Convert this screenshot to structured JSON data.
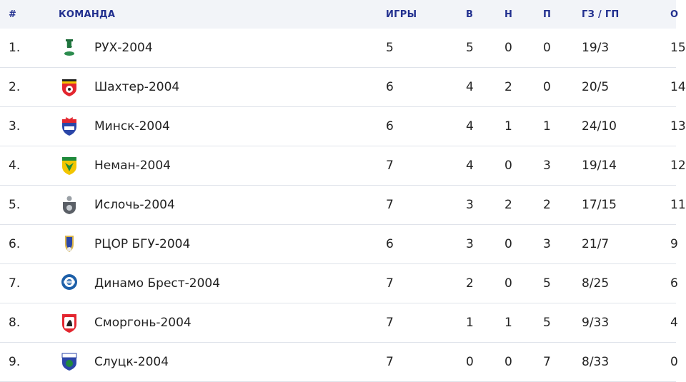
{
  "headers": {
    "rank": "#",
    "team": "КОМАНДА",
    "games": "ИГРЫ",
    "w": "В",
    "d": "Н",
    "l": "П",
    "goals": "ГЗ / ГП",
    "pts": "О"
  },
  "colors": {
    "header_text": "#22308f",
    "header_bg": "#f2f4f8"
  },
  "rows": [
    {
      "rank": "1.",
      "team": "РУХ-2004",
      "logo": "rukh-logo-icon",
      "games": "5",
      "w": "5",
      "d": "0",
      "l": "0",
      "goals": "19/3",
      "pts": "15"
    },
    {
      "rank": "2.",
      "team": "Шахтер-2004",
      "logo": "shakhtar-logo-icon",
      "games": "6",
      "w": "4",
      "d": "2",
      "l": "0",
      "goals": "20/5",
      "pts": "14"
    },
    {
      "rank": "3.",
      "team": "Минск-2004",
      "logo": "minsk-logo-icon",
      "games": "6",
      "w": "4",
      "d": "1",
      "l": "1",
      "goals": "24/10",
      "pts": "13"
    },
    {
      "rank": "4.",
      "team": "Неман-2004",
      "logo": "neman-logo-icon",
      "games": "7",
      "w": "4",
      "d": "0",
      "l": "3",
      "goals": "19/14",
      "pts": "12"
    },
    {
      "rank": "5.",
      "team": "Ислочь-2004",
      "logo": "isloch-logo-icon",
      "games": "7",
      "w": "3",
      "d": "2",
      "l": "2",
      "goals": "17/15",
      "pts": "11"
    },
    {
      "rank": "6.",
      "team": "РЦОР БГУ-2004",
      "logo": "bgu-logo-icon",
      "games": "6",
      "w": "3",
      "d": "0",
      "l": "3",
      "goals": "21/7",
      "pts": "9"
    },
    {
      "rank": "7.",
      "team": "Динамо Брест-2004",
      "logo": "dinamo-brest-logo-icon",
      "games": "7",
      "w": "2",
      "d": "0",
      "l": "5",
      "goals": "8/25",
      "pts": "6"
    },
    {
      "rank": "8.",
      "team": "Сморгонь-2004",
      "logo": "smorgon-logo-icon",
      "games": "7",
      "w": "1",
      "d": "1",
      "l": "5",
      "goals": "9/33",
      "pts": "4"
    },
    {
      "rank": "9.",
      "team": "Слуцк-2004",
      "logo": "slutsk-logo-icon",
      "games": "7",
      "w": "0",
      "d": "0",
      "l": "7",
      "goals": "8/33",
      "pts": "0"
    }
  ]
}
